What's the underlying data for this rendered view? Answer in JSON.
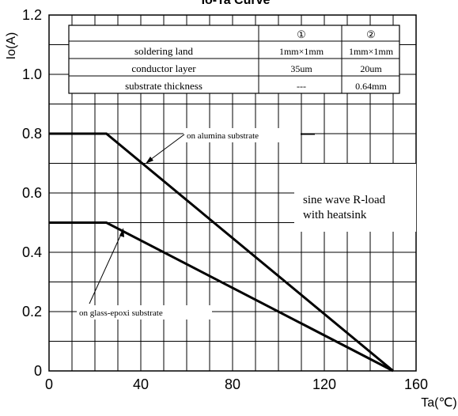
{
  "chart_data": {
    "type": "line",
    "title": "Io-Ta Curve",
    "xlabel": "Ta(℃)",
    "ylabel": "Io(A)",
    "xlim": [
      0,
      160
    ],
    "ylim": [
      0,
      1.2
    ],
    "xticks": [
      "0",
      "40",
      "80",
      "120",
      "160"
    ],
    "yticks": [
      "0",
      "0.2",
      "0.4",
      "0.6",
      "0.8",
      "1.0",
      "1.2"
    ],
    "grid": true,
    "series": [
      {
        "name": "on alumina substrate",
        "x": [
          0,
          25,
          150
        ],
        "y": [
          0.8,
          0.8,
          0
        ]
      },
      {
        "name": "on glass-epoxi substrate",
        "x": [
          0,
          25,
          150
        ],
        "y": [
          0.5,
          0.5,
          0
        ]
      }
    ],
    "annotations": {
      "alumina": "on alumina substrate",
      "glass": "on glass-epoxi substrate",
      "condition_line1": "sine wave R-load",
      "condition_line2": "with heatsink"
    },
    "table": {
      "columns": [
        "①",
        "②"
      ],
      "rows": [
        {
          "label": "soldering land",
          "c1": "1mm×1mm",
          "c2": "1mm×1mm"
        },
        {
          "label": "conductor layer",
          "c1": "35um",
          "c2": "20um"
        },
        {
          "label": "substrate thickness",
          "c1": "---",
          "c2": "0.64mm"
        }
      ]
    }
  }
}
